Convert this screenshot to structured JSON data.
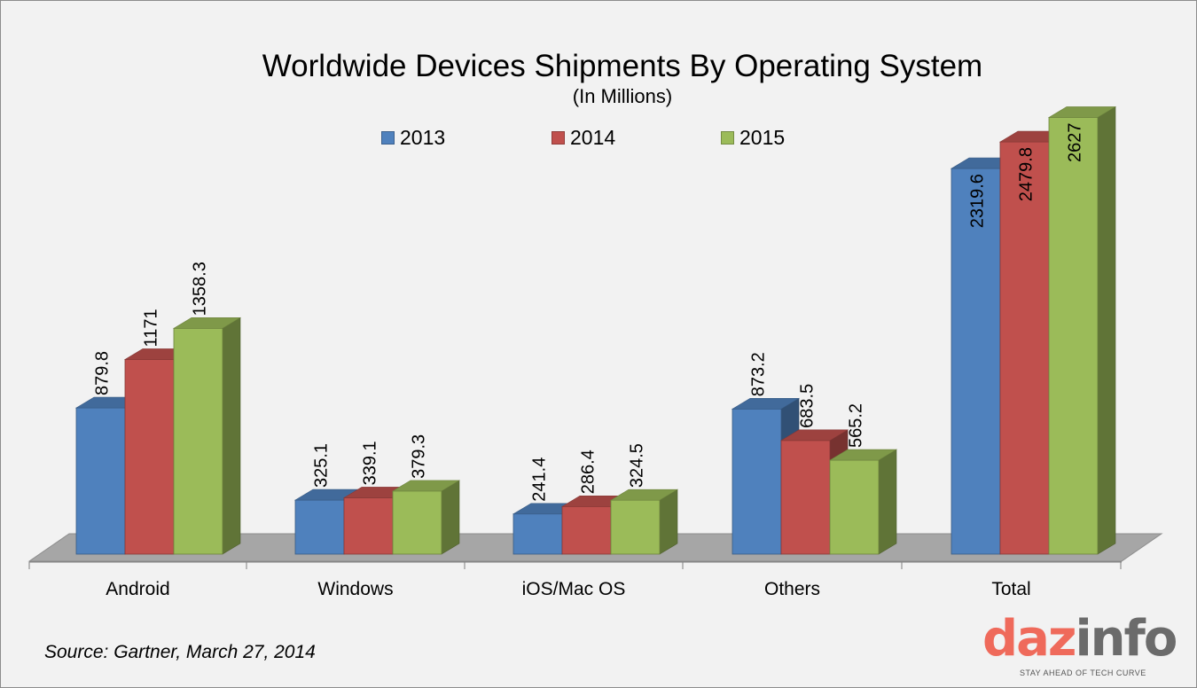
{
  "chart_data": {
    "type": "bar",
    "title": "Worldwide Devices Shipments By Operating System",
    "subtitle": "(In Millions)",
    "categories": [
      "Android",
      "Windows",
      "iOS/Mac OS",
      "Others",
      "Total"
    ],
    "series": [
      {
        "name": "2013",
        "color": "#4f81bd",
        "values": [
          879.8,
          325.1,
          241.4,
          873.2,
          2319.6
        ],
        "labels": [
          "879.8",
          "325.1",
          "241.4",
          "873.2",
          "2319.6"
        ]
      },
      {
        "name": "2014",
        "color": "#c0504d",
        "values": [
          1171,
          339.1,
          286.4,
          683.5,
          2479.8
        ],
        "labels": [
          "1171",
          "339.1",
          "286.4",
          "683.5",
          "2479.8"
        ]
      },
      {
        "name": "2015",
        "color": "#9bbb59",
        "values": [
          1358.3,
          379.3,
          324.5,
          565.2,
          2627
        ],
        "labels": [
          "1358.3",
          "379.3",
          "324.5",
          "565.2",
          "2627"
        ]
      }
    ],
    "legend_position": "top",
    "grid": false
  },
  "source": "Source: Gartner, March 27, 2014",
  "logo": {
    "part1": "daz",
    "part2": "info",
    "tagline": "STAY AHEAD OF TECH CURVE"
  }
}
